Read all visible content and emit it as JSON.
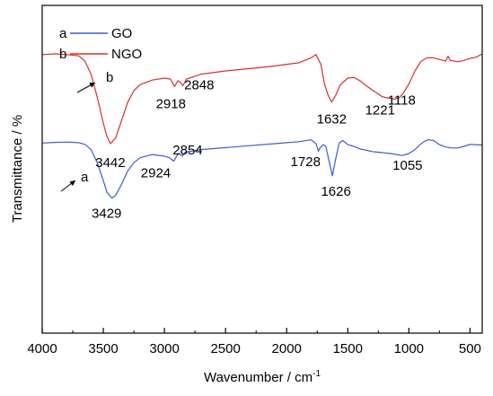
{
  "chart_data": {
    "type": "line",
    "xlabel": "Wavenumber / cm",
    "xlabel_superscript": "-1",
    "ylabel": "Transmittance / %",
    "xlim": [
      4000,
      400
    ],
    "x_reversed": true,
    "xticks": [
      4000,
      3500,
      3000,
      2500,
      2000,
      1500,
      1000,
      500
    ],
    "yticks_shown": false,
    "legend": {
      "placement": "top-left",
      "entries": [
        {
          "key": "a",
          "name": "GO",
          "color": "#3b5bd9"
        },
        {
          "key": "b",
          "name": "NGO",
          "color": "#d9302a"
        }
      ]
    },
    "series": [
      {
        "name": "GO",
        "key": "a",
        "color": "#3b5bd9",
        "points": [
          [
            4000,
            0.58
          ],
          [
            3900,
            0.582
          ],
          [
            3800,
            0.583
          ],
          [
            3700,
            0.581
          ],
          [
            3650,
            0.576
          ],
          [
            3600,
            0.56
          ],
          [
            3550,
            0.52
          ],
          [
            3500,
            0.465
          ],
          [
            3470,
            0.43
          ],
          [
            3429,
            0.412
          ],
          [
            3400,
            0.42
          ],
          [
            3350,
            0.455
          ],
          [
            3300,
            0.495
          ],
          [
            3250,
            0.52
          ],
          [
            3200,
            0.535
          ],
          [
            3100,
            0.545
          ],
          [
            3000,
            0.54
          ],
          [
            2960,
            0.535
          ],
          [
            2924,
            0.525
          ],
          [
            2900,
            0.54
          ],
          [
            2880,
            0.548
          ],
          [
            2854,
            0.54
          ],
          [
            2830,
            0.552
          ],
          [
            2700,
            0.56
          ],
          [
            2500,
            0.566
          ],
          [
            2300,
            0.572
          ],
          [
            2100,
            0.578
          ],
          [
            1900,
            0.584
          ],
          [
            1800,
            0.59
          ],
          [
            1760,
            0.578
          ],
          [
            1740,
            0.555
          ],
          [
            1728,
            0.565
          ],
          [
            1700,
            0.575
          ],
          [
            1680,
            0.57
          ],
          [
            1650,
            0.52
          ],
          [
            1626,
            0.48
          ],
          [
            1600,
            0.53
          ],
          [
            1570,
            0.58
          ],
          [
            1540,
            0.588
          ],
          [
            1500,
            0.575
          ],
          [
            1450,
            0.57
          ],
          [
            1400,
            0.562
          ],
          [
            1350,
            0.558
          ],
          [
            1300,
            0.554
          ],
          [
            1250,
            0.552
          ],
          [
            1200,
            0.55
          ],
          [
            1150,
            0.548
          ],
          [
            1100,
            0.545
          ],
          [
            1055,
            0.542
          ],
          [
            1000,
            0.548
          ],
          [
            950,
            0.56
          ],
          [
            900,
            0.578
          ],
          [
            850,
            0.59
          ],
          [
            800,
            0.588
          ],
          [
            750,
            0.575
          ],
          [
            700,
            0.568
          ],
          [
            650,
            0.565
          ],
          [
            600,
            0.565
          ],
          [
            550,
            0.57
          ],
          [
            500,
            0.576
          ],
          [
            450,
            0.575
          ],
          [
            400,
            0.574
          ]
        ]
      },
      {
        "name": "NGO",
        "key": "b",
        "color": "#d9302a",
        "points": [
          [
            4000,
            0.85
          ],
          [
            3900,
            0.852
          ],
          [
            3800,
            0.85
          ],
          [
            3700,
            0.846
          ],
          [
            3650,
            0.83
          ],
          [
            3600,
            0.79
          ],
          [
            3550,
            0.72
          ],
          [
            3500,
            0.64
          ],
          [
            3470,
            0.6
          ],
          [
            3442,
            0.578
          ],
          [
            3400,
            0.595
          ],
          [
            3350,
            0.65
          ],
          [
            3300,
            0.705
          ],
          [
            3250,
            0.74
          ],
          [
            3200,
            0.758
          ],
          [
            3100,
            0.772
          ],
          [
            3000,
            0.778
          ],
          [
            2950,
            0.775
          ],
          [
            2918,
            0.752
          ],
          [
            2890,
            0.77
          ],
          [
            2870,
            0.765
          ],
          [
            2848,
            0.755
          ],
          [
            2820,
            0.775
          ],
          [
            2700,
            0.79
          ],
          [
            2500,
            0.8
          ],
          [
            2300,
            0.807
          ],
          [
            2100,
            0.815
          ],
          [
            1900,
            0.825
          ],
          [
            1800,
            0.84
          ],
          [
            1760,
            0.85
          ],
          [
            1720,
            0.82
          ],
          [
            1690,
            0.76
          ],
          [
            1660,
            0.725
          ],
          [
            1632,
            0.705
          ],
          [
            1600,
            0.725
          ],
          [
            1560,
            0.758
          ],
          [
            1500,
            0.778
          ],
          [
            1450,
            0.78
          ],
          [
            1400,
            0.77
          ],
          [
            1350,
            0.755
          ],
          [
            1300,
            0.742
          ],
          [
            1250,
            0.73
          ],
          [
            1221,
            0.722
          ],
          [
            1180,
            0.718
          ],
          [
            1150,
            0.716
          ],
          [
            1118,
            0.714
          ],
          [
            1080,
            0.718
          ],
          [
            1050,
            0.73
          ],
          [
            1000,
            0.76
          ],
          [
            950,
            0.8
          ],
          [
            900,
            0.83
          ],
          [
            850,
            0.84
          ],
          [
            800,
            0.84
          ],
          [
            750,
            0.835
          ],
          [
            700,
            0.83
          ],
          [
            680,
            0.845
          ],
          [
            660,
            0.832
          ],
          [
            600,
            0.828
          ],
          [
            550,
            0.832
          ],
          [
            500,
            0.838
          ],
          [
            450,
            0.842
          ],
          [
            400,
            0.852
          ]
        ]
      }
    ],
    "peak_labels": [
      {
        "series": "NGO",
        "x": 3442,
        "text": "3442"
      },
      {
        "series": "NGO",
        "x": 2918,
        "text": "2918"
      },
      {
        "series": "NGO",
        "x": 2848,
        "text": "2848"
      },
      {
        "series": "NGO",
        "x": 1632,
        "text": "1632"
      },
      {
        "series": "NGO",
        "x": 1221,
        "text": "1221"
      },
      {
        "series": "NGO",
        "x": 1118,
        "text": "1118"
      },
      {
        "series": "GO",
        "x": 3429,
        "text": "3429"
      },
      {
        "series": "GO",
        "x": 2924,
        "text": "2924"
      },
      {
        "series": "GO",
        "x": 2854,
        "text": "2854"
      },
      {
        "series": "GO",
        "x": 1728,
        "text": "1728"
      },
      {
        "series": "GO",
        "x": 1626,
        "text": "1626"
      },
      {
        "series": "GO",
        "x": 1055,
        "text": "1055"
      }
    ],
    "curve_markers": [
      {
        "text": "b",
        "series": "NGO"
      },
      {
        "text": "a",
        "series": "GO"
      }
    ]
  }
}
